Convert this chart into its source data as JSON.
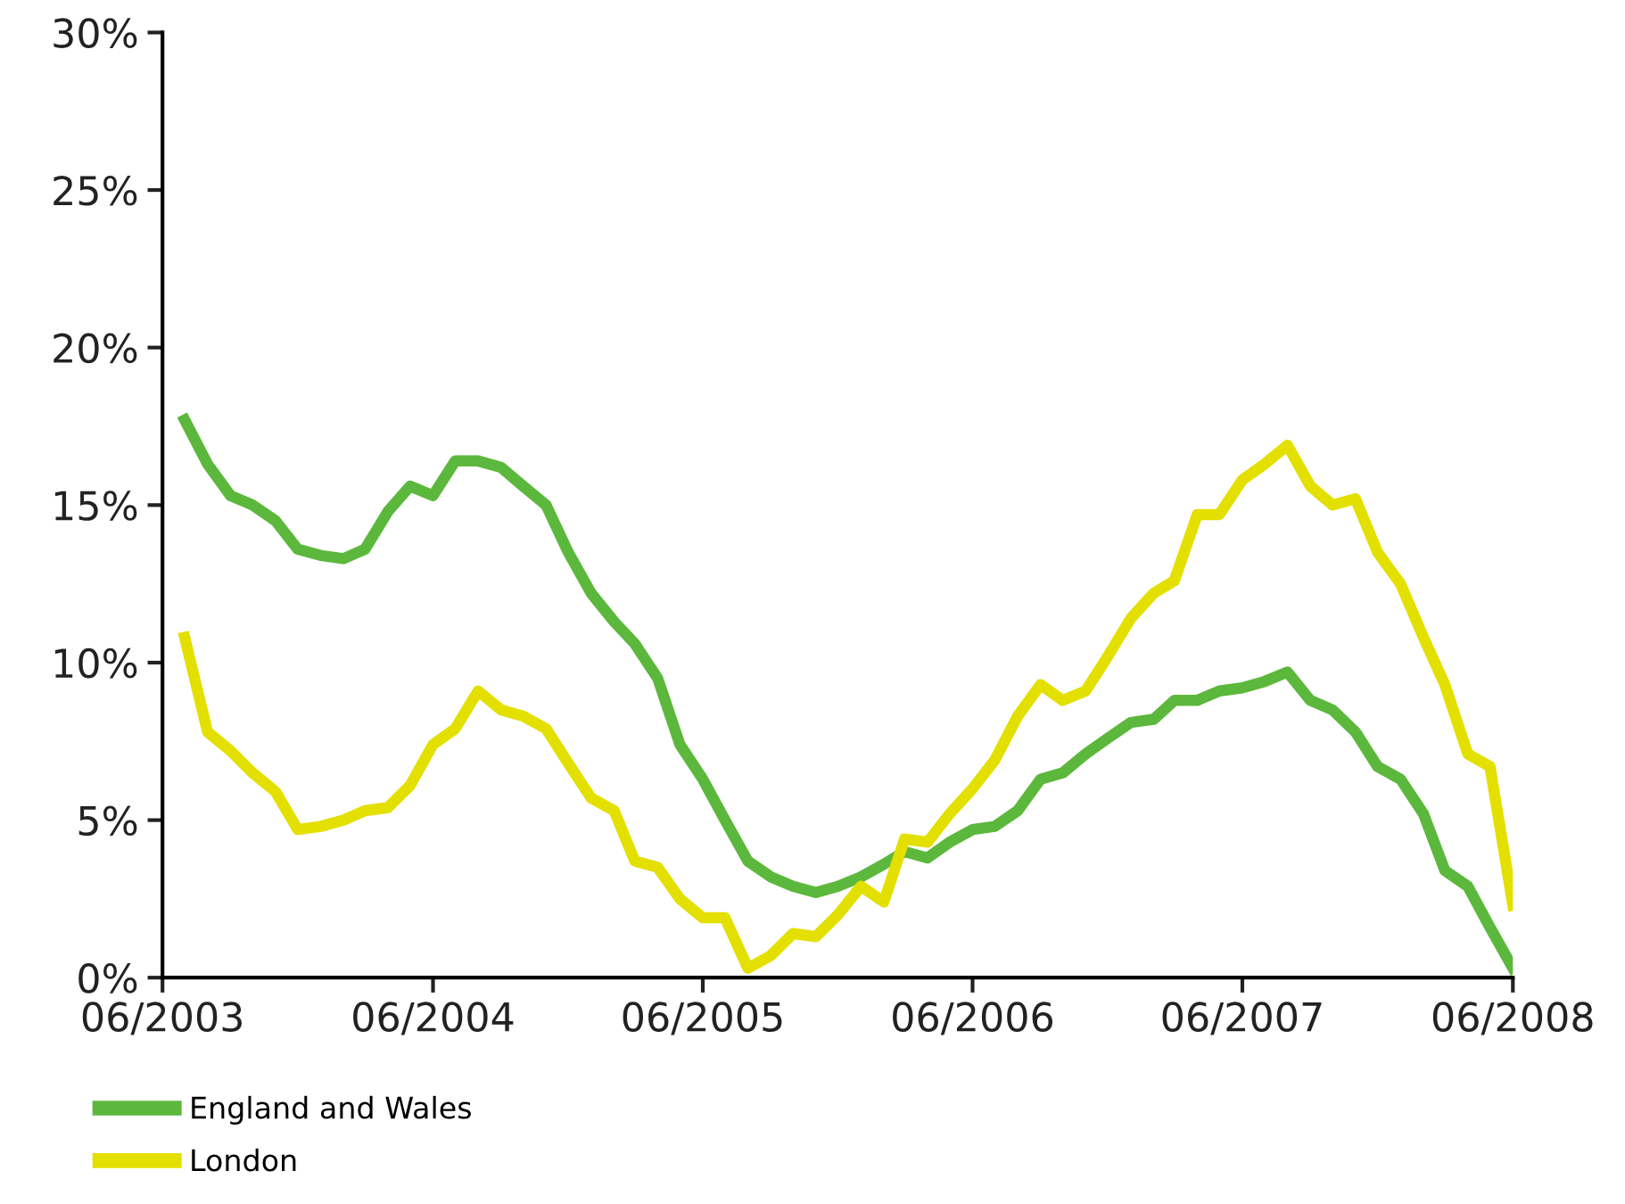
{
  "chart_data": {
    "type": "line",
    "x": [
      "2003-07",
      "2003-08",
      "2003-09",
      "2003-10",
      "2003-11",
      "2003-12",
      "2004-01",
      "2004-02",
      "2004-03",
      "2004-04",
      "2004-05",
      "2004-06",
      "2004-07",
      "2004-08",
      "2004-09",
      "2004-10",
      "2004-11",
      "2004-12",
      "2005-01",
      "2005-02",
      "2005-03",
      "2005-04",
      "2005-05",
      "2005-06",
      "2005-07",
      "2005-08",
      "2005-09",
      "2005-10",
      "2005-11",
      "2005-12",
      "2006-01",
      "2006-02",
      "2006-03",
      "2006-04",
      "2006-05",
      "2006-06",
      "2006-07",
      "2006-08",
      "2006-09",
      "2006-10",
      "2006-11",
      "2006-12",
      "2007-01",
      "2007-02",
      "2007-03",
      "2007-04",
      "2007-05",
      "2007-06",
      "2007-07",
      "2007-08",
      "2007-09",
      "2007-10",
      "2007-11",
      "2007-12",
      "2008-01",
      "2008-02",
      "2008-03",
      "2008-04",
      "2008-05",
      "2008-06"
    ],
    "series": [
      {
        "name": "England and Wales",
        "color": "#5cb83c",
        "values": [
          17.7,
          16.3,
          15.3,
          15.0,
          14.5,
          13.6,
          13.4,
          13.3,
          13.6,
          14.8,
          15.6,
          15.3,
          16.4,
          16.4,
          16.2,
          15.6,
          15.0,
          13.5,
          12.2,
          11.3,
          10.6,
          9.5,
          7.4,
          6.3,
          5.0,
          3.7,
          3.2,
          2.9,
          2.7,
          2.9,
          3.2,
          3.6,
          4.0,
          3.8,
          4.3,
          4.7,
          4.8,
          5.3,
          6.3,
          6.5,
          7.1,
          7.6,
          8.1,
          8.2,
          8.8,
          8.8,
          9.1,
          9.2,
          9.4,
          9.7,
          8.8,
          8.5,
          7.8,
          6.7,
          6.3,
          5.2,
          3.4,
          2.9,
          1.6,
          0.3
        ]
      },
      {
        "name": "London",
        "color": "#e3e000",
        "values": [
          10.8,
          7.8,
          7.2,
          6.5,
          5.9,
          4.7,
          4.8,
          5.0,
          5.3,
          5.4,
          6.1,
          7.4,
          7.9,
          9.1,
          8.5,
          8.3,
          7.9,
          6.8,
          5.7,
          5.3,
          3.7,
          3.5,
          2.5,
          1.9,
          1.9,
          0.3,
          0.7,
          1.4,
          1.3,
          2.0,
          2.9,
          2.4,
          4.4,
          4.3,
          5.2,
          6.0,
          6.9,
          8.3,
          9.3,
          8.8,
          9.1,
          10.2,
          11.4,
          12.2,
          12.6,
          14.7,
          14.7,
          15.8,
          16.3,
          16.9,
          15.6,
          15.0,
          15.2,
          13.5,
          12.5,
          10.8,
          9.3,
          7.1,
          6.7,
          2.3
        ]
      }
    ],
    "xlim": [
      "2003-06",
      "2008-06"
    ],
    "xticks": [
      {
        "value": "2003-06",
        "label": "06/2003"
      },
      {
        "value": "2004-06",
        "label": "06/2004"
      },
      {
        "value": "2005-06",
        "label": "06/2005"
      },
      {
        "value": "2006-06",
        "label": "06/2006"
      },
      {
        "value": "2007-06",
        "label": "06/2007"
      },
      {
        "value": "2008-06",
        "label": "06/2008"
      }
    ],
    "ylim": [
      0,
      30
    ],
    "yticks": [
      {
        "value": 0,
        "label": "0%"
      },
      {
        "value": 5,
        "label": "5%"
      },
      {
        "value": 10,
        "label": "10%"
      },
      {
        "value": 15,
        "label": "15%"
      },
      {
        "value": 20,
        "label": "20%"
      },
      {
        "value": 25,
        "label": "25%"
      },
      {
        "value": 30,
        "label": "30%"
      }
    ],
    "legend": "bottom left",
    "grid": false,
    "marker": "none",
    "line_style": "solid"
  }
}
